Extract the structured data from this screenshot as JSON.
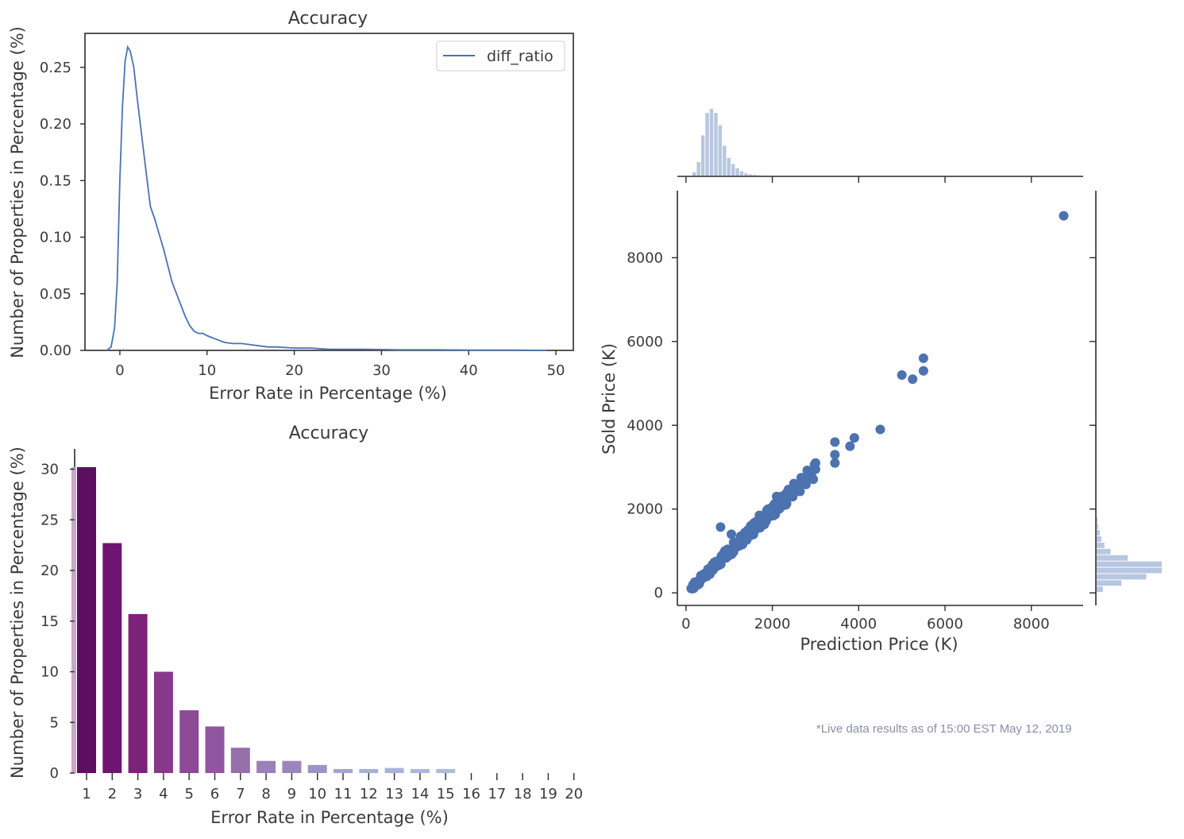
{
  "chart_data": [
    {
      "type": "line",
      "title": "Accuracy",
      "xlabel": "Error Rate in Percentage (%)",
      "ylabel": "Number of Properties in Percentage (%)",
      "xlim": [
        -4,
        52
      ],
      "ylim": [
        0,
        0.28
      ],
      "xticks": [
        "0",
        "10",
        "20",
        "30",
        "40",
        "50"
      ],
      "yticks": [
        "0.00",
        "0.05",
        "0.10",
        "0.15",
        "0.20",
        "0.25"
      ],
      "legend": {
        "position": "top-right",
        "entries": [
          "diff_ratio"
        ]
      },
      "series": [
        {
          "name": "diff_ratio",
          "color": "#4c72b0",
          "x": [
            -1.5,
            -1.0,
            -0.6,
            -0.3,
            0.0,
            0.3,
            0.6,
            0.9,
            1.2,
            1.6,
            2.0,
            2.5,
            3.0,
            3.5,
            4.0,
            4.5,
            5.0,
            5.5,
            6.0,
            6.5,
            7.0,
            7.5,
            8.0,
            8.5,
            9.0,
            9.5,
            10.0,
            11.0,
            12.0,
            13.0,
            14.0,
            15.0,
            16.0,
            17.0,
            18.0,
            20.0,
            22.0,
            24.0,
            28.0,
            32.0,
            36.0,
            40.0,
            45.0,
            49.0
          ],
          "y": [
            0.0,
            0.003,
            0.02,
            0.06,
            0.15,
            0.215,
            0.255,
            0.268,
            0.264,
            0.25,
            0.222,
            0.19,
            0.158,
            0.127,
            0.116,
            0.103,
            0.09,
            0.075,
            0.06,
            0.05,
            0.04,
            0.03,
            0.022,
            0.017,
            0.015,
            0.015,
            0.013,
            0.01,
            0.007,
            0.006,
            0.006,
            0.005,
            0.004,
            0.003,
            0.003,
            0.002,
            0.002,
            0.001,
            0.001,
            0.0005,
            0.0005,
            0.0003,
            0.0002,
            0.0
          ]
        }
      ],
      "grid": false
    },
    {
      "type": "bar",
      "title": "Accuracy",
      "xlabel": "Error Rate in Percentage (%)",
      "ylabel": "Number of Properties in Percentage (%)",
      "ylim": [
        0,
        32
      ],
      "yticks": [
        "0",
        "5",
        "10",
        "15",
        "20",
        "25",
        "30"
      ],
      "categories": [
        "1",
        "2",
        "3",
        "4",
        "5",
        "6",
        "7",
        "8",
        "9",
        "10",
        "11",
        "12",
        "13",
        "14",
        "15",
        "16",
        "17",
        "18",
        "19",
        "20"
      ],
      "values": [
        30.2,
        22.7,
        15.7,
        10.0,
        6.2,
        4.6,
        2.5,
        1.2,
        1.2,
        0.8,
        0.4,
        0.4,
        0.5,
        0.4,
        0.4,
        0,
        0,
        0,
        0,
        0
      ],
      "colors": [
        "#5b0f5e",
        "#6e1571",
        "#7c2278",
        "#86398a",
        "#8d4a95",
        "#9057a0",
        "#9670a8",
        "#9a81b6",
        "#9a85bc",
        "#9e93c6",
        "#a4a6d0",
        "#a8b0d6",
        "#a9b4d8",
        "#aab8da",
        "#abbcdc"
      ],
      "grid": false
    },
    {
      "type": "scatter",
      "xlabel": "Prediction Price (K)",
      "ylabel": "Sold Price (K)",
      "xlim": [
        -200,
        9200
      ],
      "ylim": [
        -300,
        9600
      ],
      "xticks": [
        "0",
        "2000",
        "4000",
        "6000",
        "8000"
      ],
      "yticks": [
        "0",
        "2000",
        "4000",
        "6000",
        "8000"
      ],
      "color": "#4c72b0",
      "points": [
        [
          8750,
          9000
        ],
        [
          5000,
          5200
        ],
        [
          5250,
          5100
        ],
        [
          5500,
          5600
        ],
        [
          5500,
          5300
        ],
        [
          4500,
          3900
        ],
        [
          3900,
          3700
        ],
        [
          3800,
          3500
        ],
        [
          3450,
          3600
        ],
        [
          3450,
          3300
        ],
        [
          3450,
          3100
        ],
        [
          3000,
          3100
        ],
        [
          3000,
          2950
        ],
        [
          2900,
          2900
        ],
        [
          2800,
          2800
        ],
        [
          2600,
          2600
        ],
        [
          2500,
          2500
        ],
        [
          2300,
          2350
        ],
        [
          2200,
          2200
        ],
        [
          2100,
          2300
        ],
        [
          2000,
          2050
        ],
        [
          1900,
          2000
        ],
        [
          1800,
          1700
        ],
        [
          1700,
          1850
        ],
        [
          1600,
          1500
        ],
        [
          1500,
          1600
        ],
        [
          1400,
          1350
        ],
        [
          1300,
          1300
        ],
        [
          1200,
          1150
        ],
        [
          1100,
          1200
        ],
        [
          1000,
          950
        ],
        [
          900,
          1000
        ],
        [
          800,
          800
        ],
        [
          700,
          750
        ],
        [
          600,
          600
        ],
        [
          500,
          480
        ],
        [
          400,
          420
        ],
        [
          300,
          300
        ],
        [
          200,
          180
        ],
        [
          150,
          100
        ],
        [
          800,
          1570
        ],
        [
          1050,
          1400
        ]
      ],
      "marginal_x": {
        "color": "#b7c6e1",
        "bin_edges": [
          150,
          250,
          350,
          450,
          550,
          650,
          750,
          850,
          950,
          1050,
          1150,
          1250,
          1350,
          1450,
          1550,
          1650,
          1750,
          1850,
          1950
        ],
        "counts": [
          2,
          7,
          20,
          31,
          33,
          31,
          25,
          15,
          9,
          6,
          4,
          2.5,
          1.5,
          1,
          0.7,
          0.5,
          0.3,
          0.2
        ]
      },
      "marginal_y": {
        "color": "#b7c6e1",
        "bin_edges": [
          0,
          150,
          300,
          450,
          600,
          750,
          900,
          1050,
          1200,
          1350,
          1500,
          1650,
          1800
        ],
        "counts": [
          2,
          8,
          16,
          21,
          21,
          10,
          4.5,
          2.5,
          1.5,
          1,
          0.5,
          0.3
        ]
      },
      "grid": false
    }
  ],
  "footnote": "*Live data results as of 15:00 EST May 12, 2019"
}
